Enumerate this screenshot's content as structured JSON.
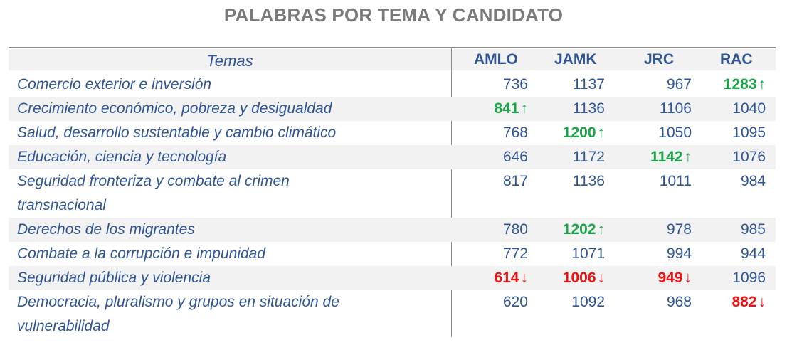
{
  "title": "PALABRAS POR TEMA Y CANDIDATO",
  "columns": [
    "AMLO",
    "JAMK",
    "JRC",
    "RAC"
  ],
  "topics_header": "Temas",
  "arrow_up": "🡑",
  "arrow_down": "🡓",
  "colors": {
    "text": "#2f5597",
    "up": "#1aa648",
    "down": "#ee1111",
    "title": "#7a7a7a",
    "shade": "#f2f2f2"
  },
  "rows": [
    {
      "topic": [
        "Comercio exterior e inversión"
      ],
      "values": [
        {
          "v": "736",
          "t": "normal"
        },
        {
          "v": "1137",
          "t": "normal"
        },
        {
          "v": "967",
          "t": "normal"
        },
        {
          "v": "1283",
          "t": "up"
        }
      ]
    },
    {
      "topic": [
        "Crecimiento económico, pobreza y desigualdad"
      ],
      "values": [
        {
          "v": "841",
          "t": "up"
        },
        {
          "v": "1136",
          "t": "normal"
        },
        {
          "v": "1106",
          "t": "normal"
        },
        {
          "v": "1040",
          "t": "normal"
        }
      ]
    },
    {
      "topic": [
        "Salud, desarrollo sustentable y cambio climático"
      ],
      "values": [
        {
          "v": "768",
          "t": "normal"
        },
        {
          "v": "1200",
          "t": "up"
        },
        {
          "v": "1050",
          "t": "normal"
        },
        {
          "v": "1095",
          "t": "normal"
        }
      ]
    },
    {
      "topic": [
        "Educación, ciencia y tecnología"
      ],
      "values": [
        {
          "v": "646",
          "t": "normal"
        },
        {
          "v": "1172",
          "t": "normal"
        },
        {
          "v": "1142",
          "t": "up"
        },
        {
          "v": "1076",
          "t": "normal"
        }
      ]
    },
    {
      "topic": [
        "Seguridad fronteriza y combate al crimen",
        "transnacional"
      ],
      "values": [
        {
          "v": "817",
          "t": "normal"
        },
        {
          "v": "1136",
          "t": "normal"
        },
        {
          "v": "1011",
          "t": "normal"
        },
        {
          "v": "984",
          "t": "normal"
        }
      ]
    },
    {
      "topic": [
        "Derechos de los migrantes"
      ],
      "values": [
        {
          "v": "780",
          "t": "normal"
        },
        {
          "v": "1202",
          "t": "up"
        },
        {
          "v": "978",
          "t": "normal"
        },
        {
          "v": "985",
          "t": "normal"
        }
      ]
    },
    {
      "topic": [
        "Combate a la corrupción e impunidad"
      ],
      "values": [
        {
          "v": "772",
          "t": "normal"
        },
        {
          "v": "1071",
          "t": "normal"
        },
        {
          "v": "994",
          "t": "normal"
        },
        {
          "v": "944",
          "t": "normal"
        }
      ]
    },
    {
      "topic": [
        "Seguridad pública y violencia"
      ],
      "values": [
        {
          "v": "614",
          "t": "down"
        },
        {
          "v": "1006",
          "t": "down"
        },
        {
          "v": "949",
          "t": "down"
        },
        {
          "v": "1096",
          "t": "normal"
        }
      ]
    },
    {
      "topic": [
        "Democracia, pluralismo y grupos en situación de",
        "vulnerabilidad"
      ],
      "values": [
        {
          "v": "620",
          "t": "normal"
        },
        {
          "v": "1092",
          "t": "normal"
        },
        {
          "v": "968",
          "t": "normal"
        },
        {
          "v": "882",
          "t": "down"
        }
      ]
    }
  ]
}
